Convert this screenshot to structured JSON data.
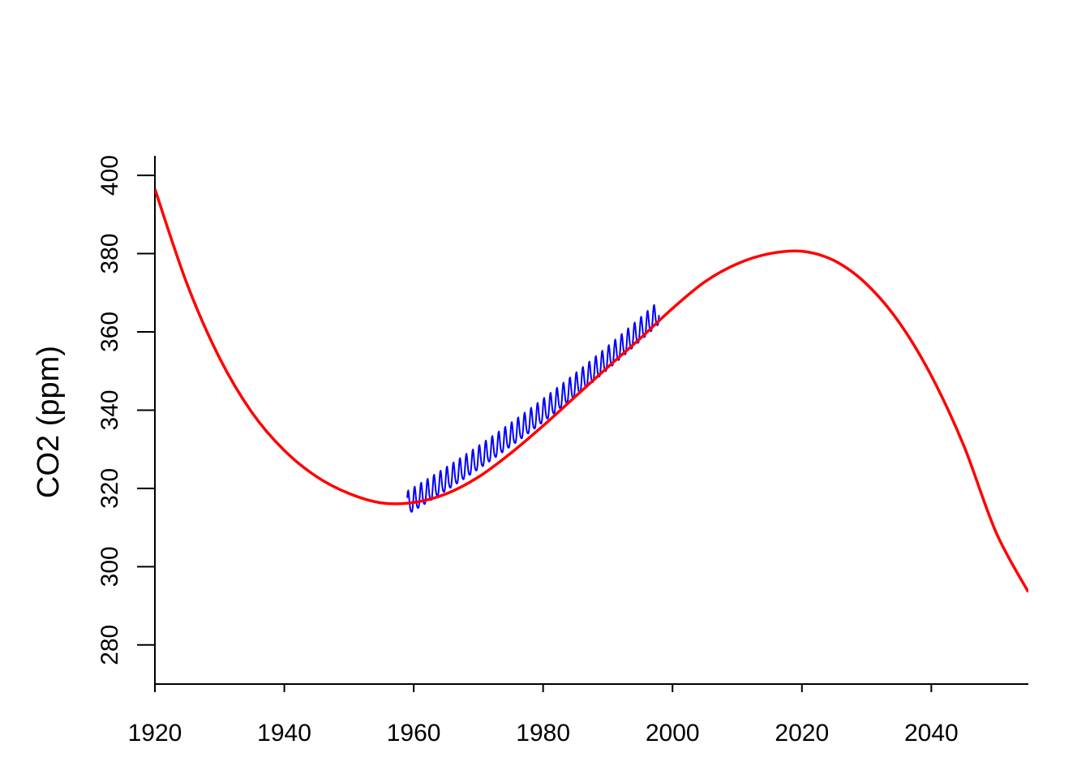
{
  "chart_data": {
    "type": "line",
    "title": "",
    "xlabel": "",
    "ylabel": "CO2 (ppm)",
    "xlim": [
      1920,
      2055
    ],
    "ylim": [
      270,
      405
    ],
    "xticks": [
      1920,
      1940,
      1960,
      1980,
      2000,
      2020,
      2040
    ],
    "yticks": [
      280,
      300,
      320,
      340,
      360,
      380,
      400
    ],
    "grid": false,
    "legend": "none",
    "colors": {
      "observed": "#0000ff",
      "fit": "#ff0000",
      "axis": "#000000"
    },
    "series": [
      {
        "kind": "observed",
        "start_year": 1959.0,
        "end_year": 1997.9,
        "samples_per_year": 12,
        "trend_at_1959": 315.8,
        "trend_at_1998": 364.5,
        "seasonal_amplitude": 3.0
      },
      {
        "kind": "fit",
        "x": [
          1920,
          1925,
          1930,
          1935,
          1940,
          1945,
          1950,
          1955,
          1960,
          1965,
          1970,
          1975,
          1980,
          1985,
          1990,
          1995,
          2000,
          2005,
          2010,
          2015,
          2020,
          2025,
          2030,
          2035,
          2040,
          2045,
          2050,
          2055
        ],
        "y": [
          396.5,
          372.1,
          353.3,
          339.4,
          329.7,
          323.0,
          318.7,
          316.3,
          316.4,
          318.6,
          322.9,
          329.0,
          336.0,
          343.5,
          351.0,
          358.3,
          366.0,
          372.8,
          377.4,
          380.0,
          380.6,
          378.2,
          372.2,
          362.5,
          348.8,
          331.0,
          308.8,
          293.5
        ]
      }
    ]
  }
}
